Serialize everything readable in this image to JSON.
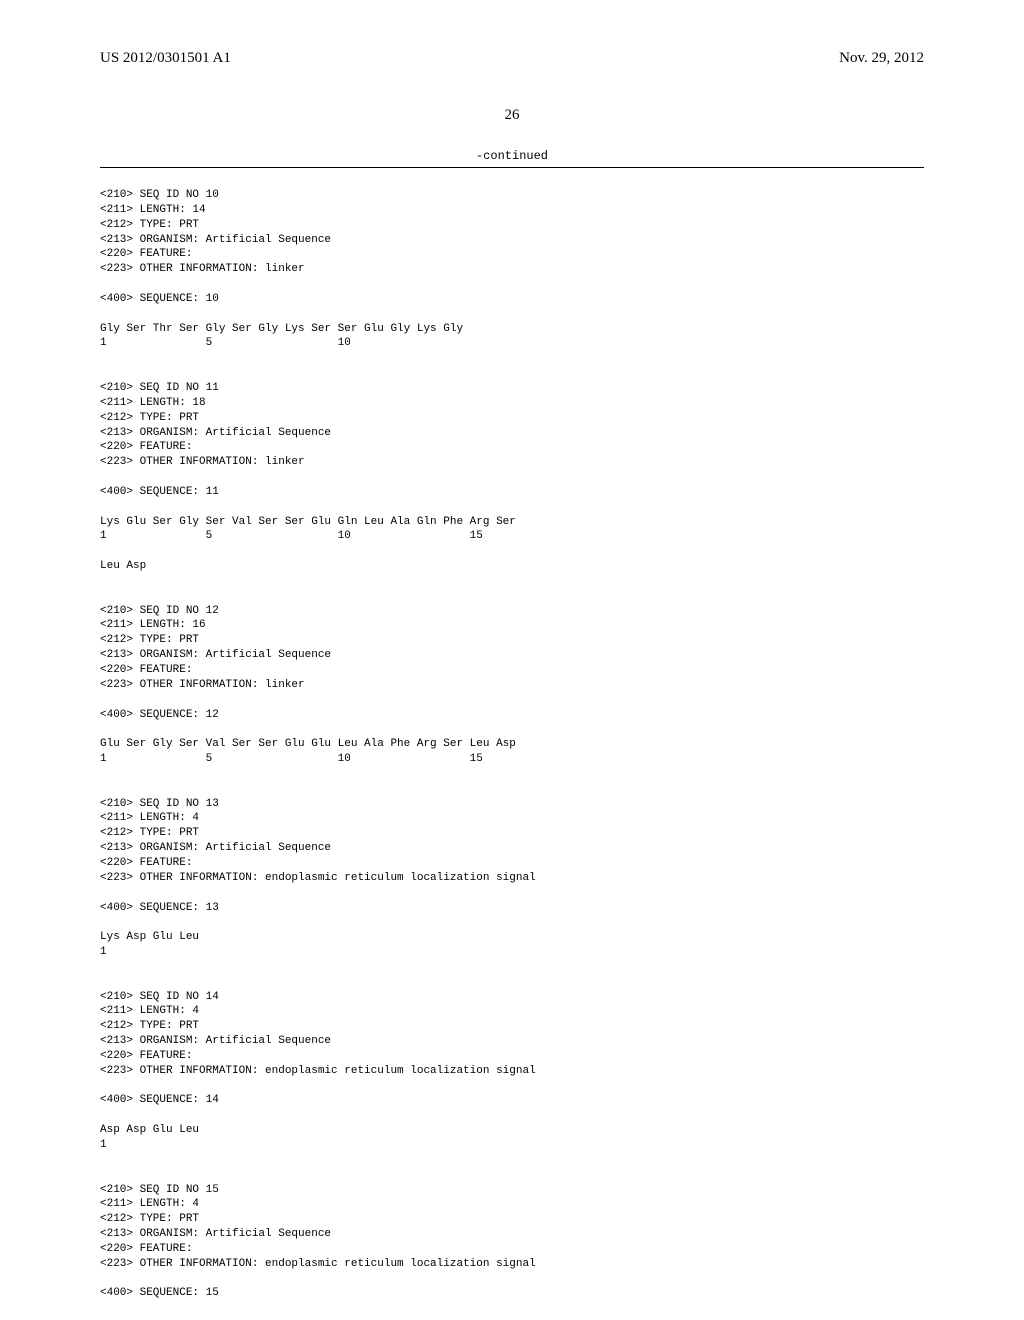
{
  "header": {
    "pub_number": "US 2012/0301501 A1",
    "date": "Nov. 29, 2012"
  },
  "page_number": "26",
  "continued_label": "-continued",
  "sequences": [
    {
      "id_line": "<210> SEQ ID NO 10",
      "length_line": "<211> LENGTH: 14",
      "type_line": "<212> TYPE: PRT",
      "organism_line": "<213> ORGANISM: Artificial Sequence",
      "feature_line": "<220> FEATURE:",
      "info_line": "<223> OTHER INFORMATION: linker",
      "seq_title": "<400> SEQUENCE: 10",
      "seq_line1": "Gly Ser Thr Ser Gly Ser Gly Lys Ser Ser Glu Gly Lys Gly",
      "seq_nums1": "1               5                   10"
    },
    {
      "id_line": "<210> SEQ ID NO 11",
      "length_line": "<211> LENGTH: 18",
      "type_line": "<212> TYPE: PRT",
      "organism_line": "<213> ORGANISM: Artificial Sequence",
      "feature_line": "<220> FEATURE:",
      "info_line": "<223> OTHER INFORMATION: linker",
      "seq_title": "<400> SEQUENCE: 11",
      "seq_line1": "Lys Glu Ser Gly Ser Val Ser Ser Glu Gln Leu Ala Gln Phe Arg Ser",
      "seq_nums1": "1               5                   10                  15",
      "seq_line2": "Leu Asp"
    },
    {
      "id_line": "<210> SEQ ID NO 12",
      "length_line": "<211> LENGTH: 16",
      "type_line": "<212> TYPE: PRT",
      "organism_line": "<213> ORGANISM: Artificial Sequence",
      "feature_line": "<220> FEATURE:",
      "info_line": "<223> OTHER INFORMATION: linker",
      "seq_title": "<400> SEQUENCE: 12",
      "seq_line1": "Glu Ser Gly Ser Val Ser Ser Glu Glu Leu Ala Phe Arg Ser Leu Asp",
      "seq_nums1": "1               5                   10                  15"
    },
    {
      "id_line": "<210> SEQ ID NO 13",
      "length_line": "<211> LENGTH: 4",
      "type_line": "<212> TYPE: PRT",
      "organism_line": "<213> ORGANISM: Artificial Sequence",
      "feature_line": "<220> FEATURE:",
      "info_line": "<223> OTHER INFORMATION: endoplasmic reticulum localization signal",
      "seq_title": "<400> SEQUENCE: 13",
      "seq_line1": "Lys Asp Glu Leu",
      "seq_nums1": "1"
    },
    {
      "id_line": "<210> SEQ ID NO 14",
      "length_line": "<211> LENGTH: 4",
      "type_line": "<212> TYPE: PRT",
      "organism_line": "<213> ORGANISM: Artificial Sequence",
      "feature_line": "<220> FEATURE:",
      "info_line": "<223> OTHER INFORMATION: endoplasmic reticulum localization signal",
      "seq_title": "<400> SEQUENCE: 14",
      "seq_line1": "Asp Asp Glu Leu",
      "seq_nums1": "1"
    },
    {
      "id_line": "<210> SEQ ID NO 15",
      "length_line": "<211> LENGTH: 4",
      "type_line": "<212> TYPE: PRT",
      "organism_line": "<213> ORGANISM: Artificial Sequence",
      "feature_line": "<220> FEATURE:",
      "info_line": "<223> OTHER INFORMATION: endoplasmic reticulum localization signal",
      "seq_title": "<400> SEQUENCE: 15"
    }
  ]
}
